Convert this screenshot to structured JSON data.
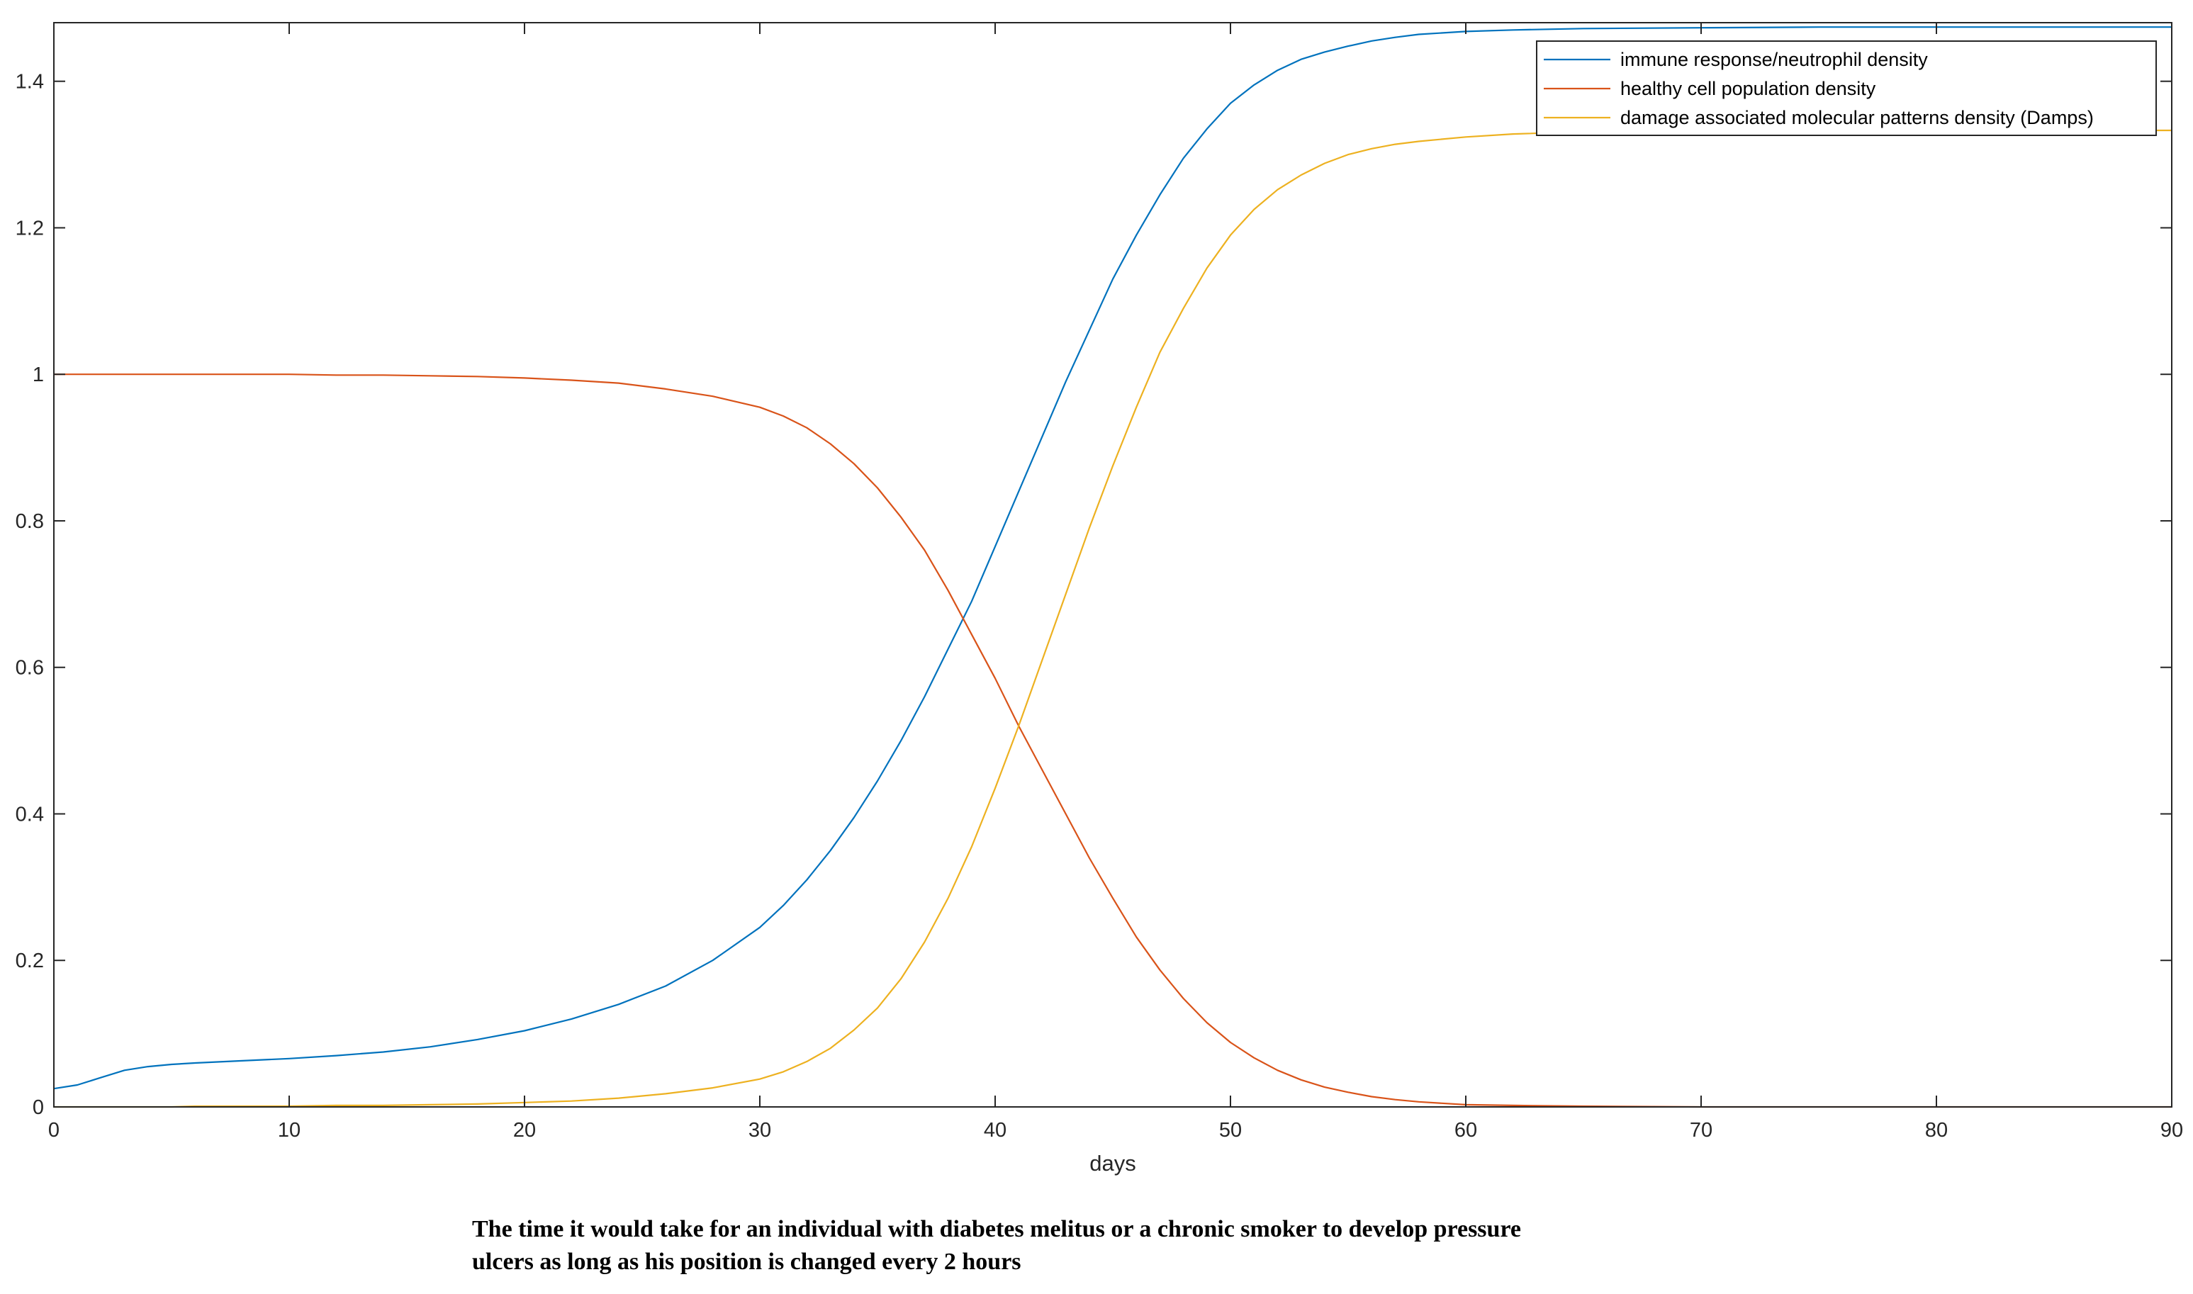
{
  "chart_data": {
    "type": "line",
    "title": "",
    "xlabel": "days",
    "ylabel": "",
    "xlim": [
      0,
      90
    ],
    "ylim": [
      0,
      1.48
    ],
    "xticks": [
      0,
      10,
      20,
      30,
      40,
      50,
      60,
      70,
      80,
      90
    ],
    "yticks": [
      0,
      0.2,
      0.4,
      0.6,
      0.8,
      1,
      1.2,
      1.4
    ],
    "ytick_labels": [
      "0",
      "0.2",
      "0.4",
      "0.6",
      "0.8",
      "1",
      "1.2",
      "1.4"
    ],
    "grid": false,
    "legend_position": "top-right",
    "x": [
      0,
      1,
      2,
      3,
      4,
      5,
      6,
      8,
      10,
      12,
      14,
      16,
      18,
      20,
      22,
      24,
      26,
      28,
      30,
      31,
      32,
      33,
      34,
      35,
      36,
      37,
      38,
      39,
      40,
      41,
      42,
      43,
      44,
      45,
      46,
      47,
      48,
      49,
      50,
      51,
      52,
      53,
      54,
      55,
      56,
      57,
      58,
      60,
      62,
      65,
      70,
      75,
      80,
      90
    ],
    "series": [
      {
        "name": "immune response/neutrophil density",
        "color": "#0072BD",
        "values": [
          0.025,
          0.03,
          0.04,
          0.05,
          0.055,
          0.058,
          0.06,
          0.063,
          0.066,
          0.07,
          0.075,
          0.082,
          0.092,
          0.104,
          0.12,
          0.14,
          0.165,
          0.2,
          0.245,
          0.275,
          0.31,
          0.35,
          0.395,
          0.445,
          0.5,
          0.56,
          0.625,
          0.69,
          0.765,
          0.84,
          0.915,
          0.99,
          1.06,
          1.13,
          1.19,
          1.245,
          1.295,
          1.335,
          1.37,
          1.395,
          1.415,
          1.43,
          1.44,
          1.448,
          1.455,
          1.46,
          1.464,
          1.468,
          1.47,
          1.472,
          1.473,
          1.474,
          1.474,
          1.474
        ]
      },
      {
        "name": "healthy cell population density",
        "color": "#D95319",
        "values": [
          1.0,
          1.0,
          1.0,
          1.0,
          1.0,
          1.0,
          1.0,
          1.0,
          1.0,
          0.999,
          0.999,
          0.998,
          0.997,
          0.995,
          0.992,
          0.988,
          0.98,
          0.97,
          0.955,
          0.943,
          0.927,
          0.905,
          0.878,
          0.845,
          0.805,
          0.76,
          0.705,
          0.645,
          0.585,
          0.52,
          0.46,
          0.4,
          0.34,
          0.285,
          0.232,
          0.187,
          0.148,
          0.115,
          0.088,
          0.067,
          0.05,
          0.037,
          0.027,
          0.02,
          0.014,
          0.01,
          0.007,
          0.003,
          0.002,
          0.001,
          0.0,
          0.0,
          0.0,
          0.0
        ]
      },
      {
        "name": "damage associated molecular patterns density (Damps)",
        "color": "#EDB120",
        "values": [
          0.0,
          0.0,
          0.0,
          0.0,
          0.0,
          0.0,
          0.001,
          0.001,
          0.001,
          0.002,
          0.002,
          0.003,
          0.004,
          0.006,
          0.008,
          0.012,
          0.018,
          0.026,
          0.038,
          0.048,
          0.062,
          0.08,
          0.105,
          0.135,
          0.175,
          0.225,
          0.285,
          0.355,
          0.435,
          0.52,
          0.61,
          0.7,
          0.79,
          0.875,
          0.955,
          1.03,
          1.09,
          1.145,
          1.19,
          1.225,
          1.252,
          1.272,
          1.288,
          1.3,
          1.308,
          1.314,
          1.318,
          1.324,
          1.328,
          1.331,
          1.332,
          1.333,
          1.333,
          1.333
        ]
      }
    ],
    "caption_lines": [
      "The time it would take for an individual with diabetes melitus or a chronic smoker to develop pressure",
      "ulcers as long as his position is changed every 2 hours"
    ]
  }
}
